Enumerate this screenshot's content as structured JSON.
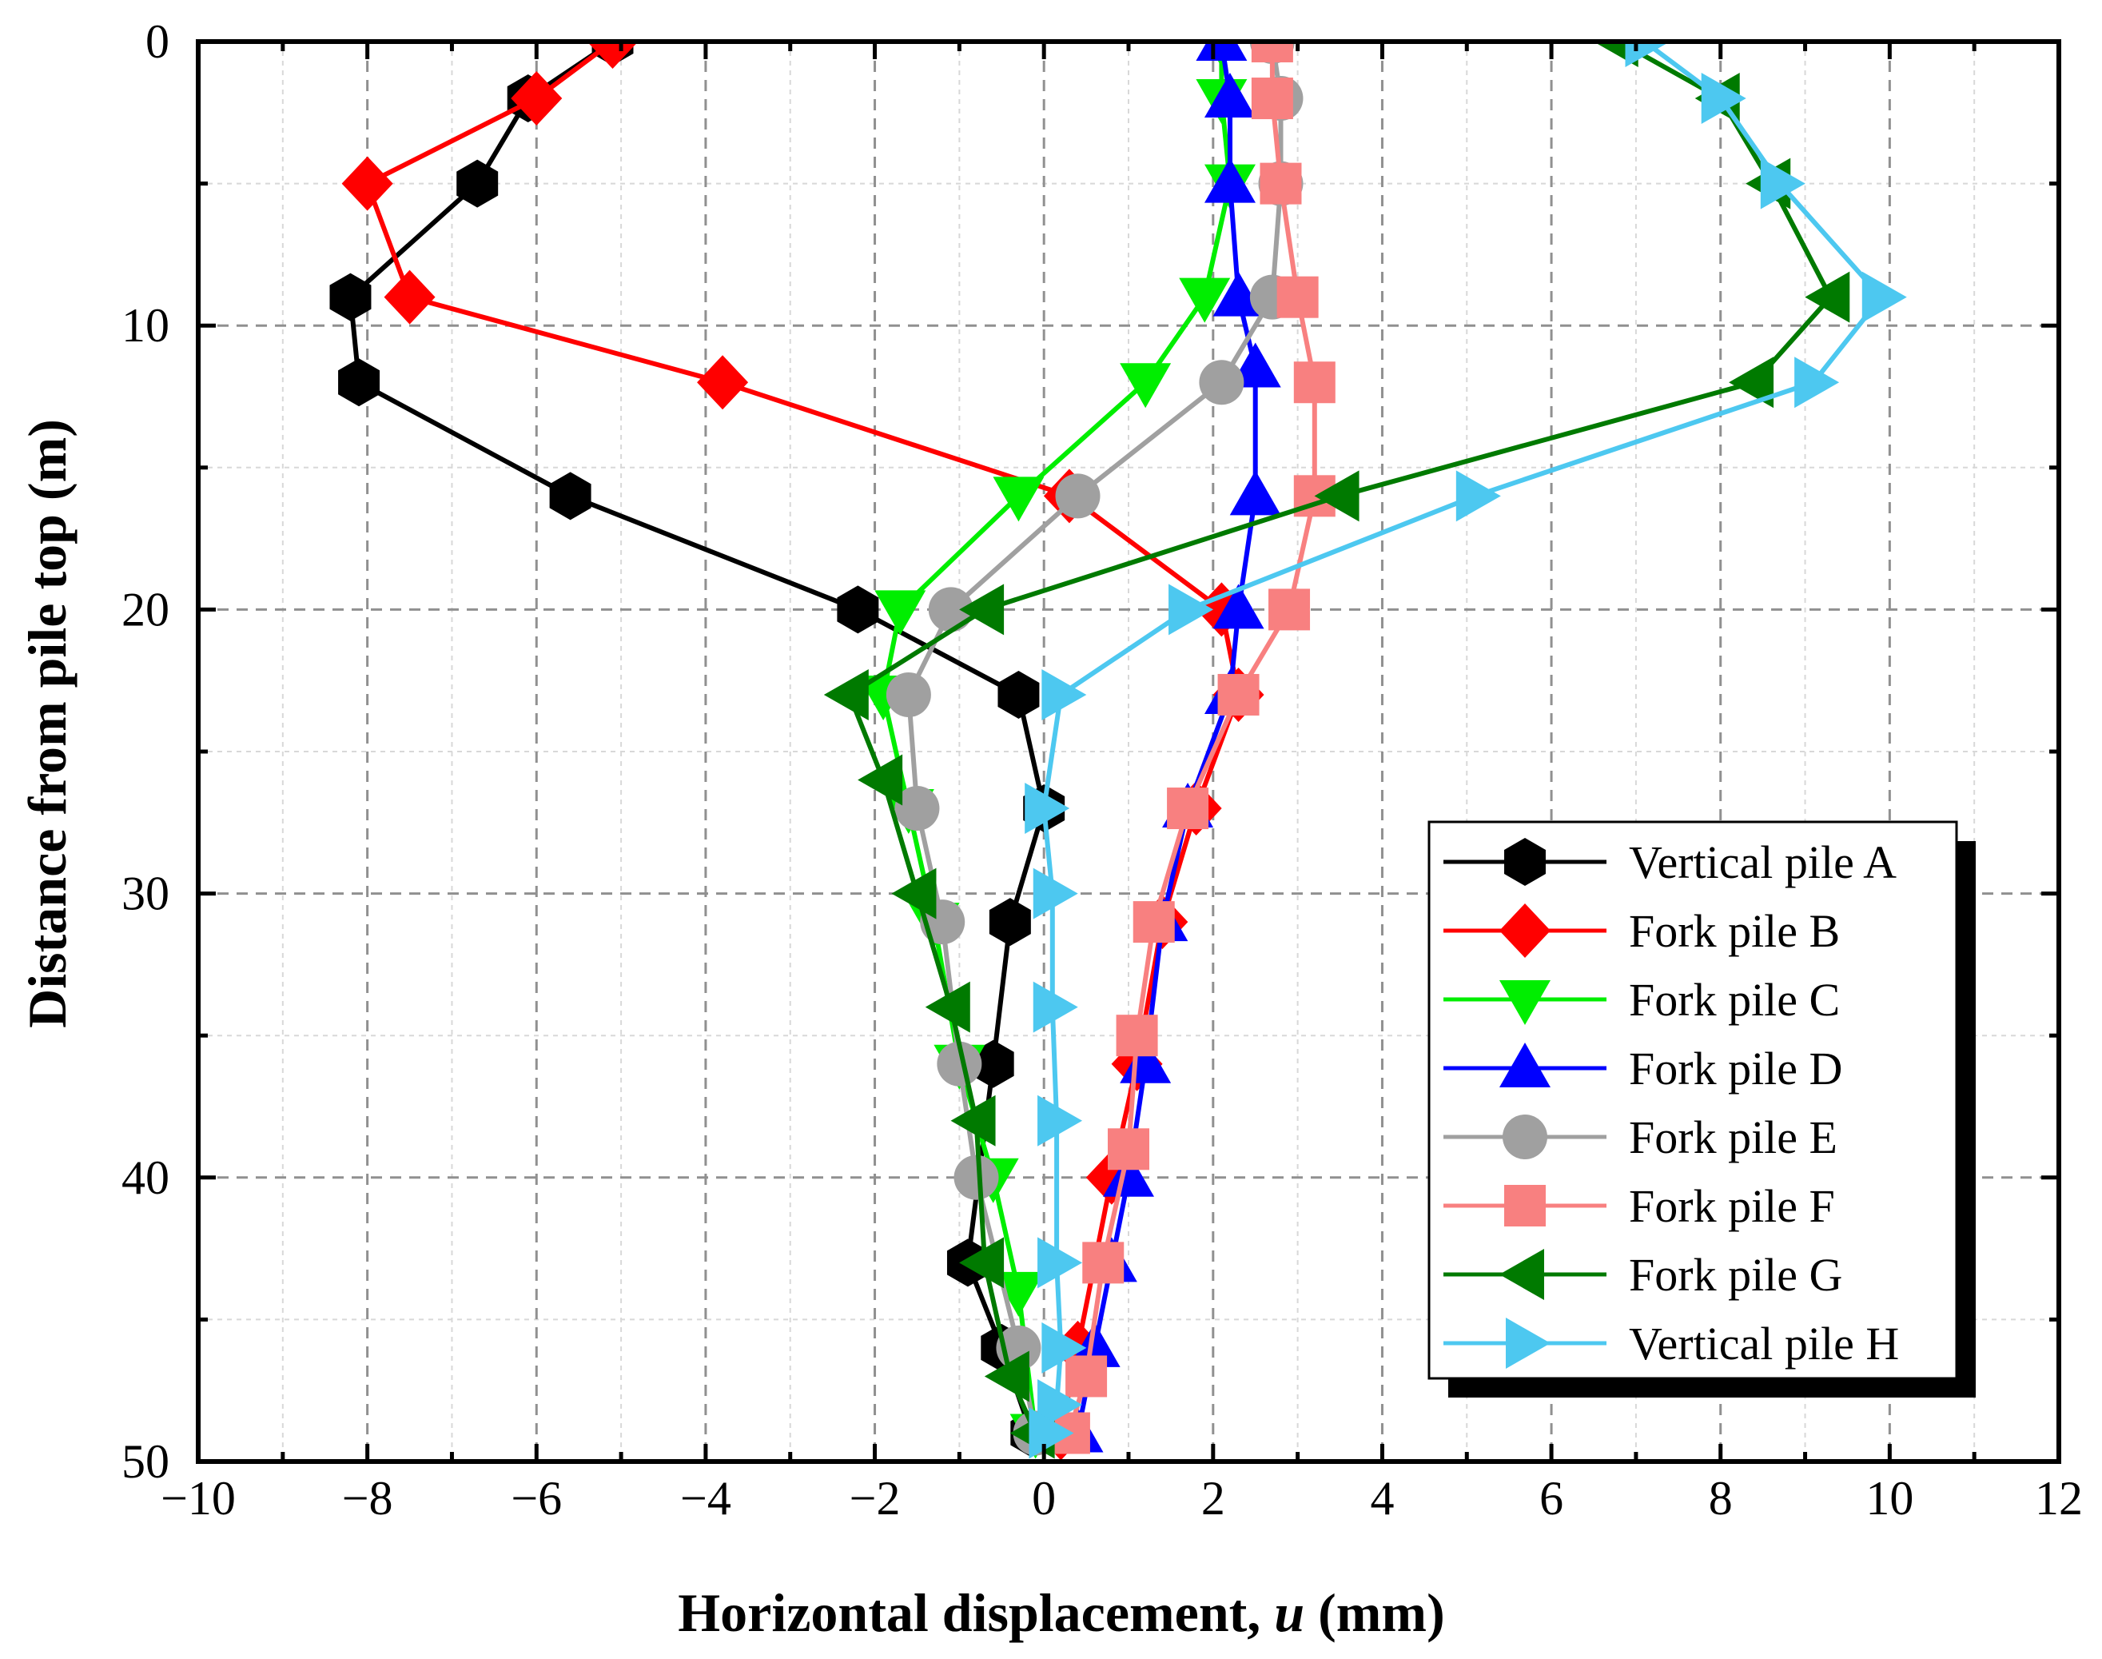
{
  "chart_data": {
    "type": "line",
    "title": "",
    "xlabel": "Horizontal displacement, ",
    "xlabel_italic": "u",
    "xlabel_unit": " (mm)",
    "ylabel": "Distance from pile top (m)",
    "xlim": [
      -10,
      12
    ],
    "ylim": [
      0,
      50
    ],
    "y_inverted": true,
    "x_ticks": [
      -10,
      -8,
      -6,
      -4,
      -2,
      0,
      2,
      4,
      6,
      8,
      10,
      12
    ],
    "x_tick_labels": [
      "−10",
      "−8",
      "−6",
      "−4",
      "−2",
      "0",
      "2",
      "4",
      "6",
      "8",
      "10",
      "12"
    ],
    "y_ticks": [
      0,
      10,
      20,
      30,
      40,
      50
    ],
    "y_tick_labels": [
      "0",
      "10",
      "20",
      "30",
      "40",
      "50"
    ],
    "grid": true,
    "legend_position": "bottom-right",
    "series": [
      {
        "name": "Vertical pile A",
        "color": "#000000",
        "marker": "hexagon",
        "x": [
          -5.1,
          -6.1,
          -6.7,
          -8.2,
          -8.1,
          -5.6,
          -2.2,
          -0.3,
          0.0,
          -0.4,
          -0.6,
          -0.9,
          -0.5,
          -0.15
        ],
        "y": [
          0,
          2,
          5,
          9,
          12,
          16,
          20,
          23,
          27,
          31,
          36,
          43,
          46,
          49
        ]
      },
      {
        "name": "Fork pile B",
        "color": "#ff0000",
        "marker": "diamond",
        "x": [
          -5.1,
          -6.0,
          -8.0,
          -7.5,
          -3.8,
          0.3,
          2.1,
          2.3,
          1.8,
          1.4,
          1.1,
          0.8,
          0.4,
          0.2
        ],
        "y": [
          0,
          2,
          5,
          9,
          12,
          16,
          20,
          23,
          27,
          31,
          36,
          40,
          46,
          49
        ]
      },
      {
        "name": "Fork pile C",
        "color": "#00ee00",
        "marker": "triangle-down",
        "x": [
          2.1,
          2.1,
          2.2,
          1.9,
          1.2,
          -0.3,
          -1.7,
          -1.9,
          -1.6,
          -1.3,
          -1.0,
          -0.6,
          -0.3,
          -0.1
        ],
        "y": [
          0,
          2,
          5,
          9,
          12,
          16,
          20,
          23,
          27,
          31,
          36,
          40,
          44,
          49
        ]
      },
      {
        "name": "Fork pile D",
        "color": "#0000ff",
        "marker": "triangle-up",
        "x": [
          2.1,
          2.2,
          2.2,
          2.3,
          2.5,
          2.5,
          2.3,
          2.2,
          1.7,
          1.4,
          1.2,
          1.0,
          0.8,
          0.6,
          0.4
        ],
        "y": [
          0,
          2,
          5,
          9,
          11.5,
          16,
          20,
          23,
          27,
          31,
          36,
          40,
          43,
          46,
          49
        ]
      },
      {
        "name": "Fork pile E",
        "color": "#a0a0a0",
        "marker": "circle",
        "x": [
          2.7,
          2.8,
          2.8,
          2.7,
          2.1,
          0.4,
          -1.1,
          -1.6,
          -1.5,
          -1.2,
          -1.0,
          -0.8,
          -0.3,
          -0.1
        ],
        "y": [
          0,
          2,
          5,
          9,
          12,
          16,
          20,
          23,
          27,
          31,
          36,
          40,
          46,
          49
        ]
      },
      {
        "name": "Fork pile F",
        "color": "#f88080",
        "marker": "square",
        "x": [
          2.7,
          2.7,
          2.8,
          3.0,
          3.2,
          3.2,
          2.9,
          2.3,
          1.7,
          1.3,
          1.1,
          1.0,
          0.7,
          0.5,
          0.3
        ],
        "y": [
          0,
          2,
          5,
          9,
          12,
          16,
          20,
          23,
          27,
          31,
          35,
          39,
          43,
          47,
          49
        ]
      },
      {
        "name": "Fork pile G",
        "color": "#007a00",
        "marker": "triangle-left",
        "x": [
          6.8,
          8.0,
          8.6,
          9.3,
          8.4,
          3.5,
          -0.7,
          -2.3,
          -1.9,
          -1.5,
          -1.1,
          -0.8,
          -0.7,
          -0.4,
          -0.1
        ],
        "y": [
          0,
          2,
          5,
          9,
          12,
          16,
          20,
          23,
          26,
          30,
          34,
          38,
          43,
          47,
          49
        ]
      },
      {
        "name": "Vertical pile H",
        "color": "#4dc8f0",
        "marker": "triangle-right",
        "x": [
          7.1,
          8.0,
          8.7,
          9.9,
          9.1,
          5.1,
          1.7,
          0.2,
          0.0,
          0.1,
          0.1,
          0.15,
          0.15,
          0.2,
          0.15,
          0.05
        ],
        "y": [
          0,
          2,
          5,
          9,
          12,
          16,
          20,
          23,
          27,
          30,
          34,
          38,
          43,
          46,
          48,
          49
        ]
      }
    ]
  }
}
